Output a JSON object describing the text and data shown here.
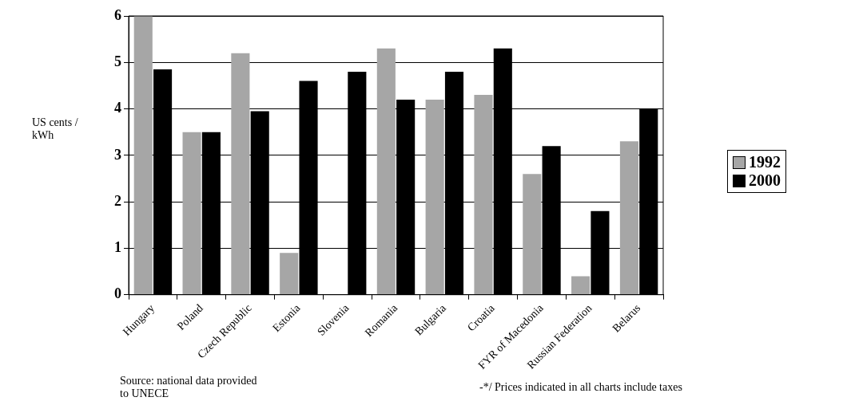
{
  "chart_data": {
    "type": "bar",
    "ylabel": "US cents / kWh",
    "categories": [
      "Hungary",
      "Poland",
      "Czech Republic",
      "Estonia",
      "Slovenia",
      "Romania",
      "Bulgaria",
      "Croatia",
      "FYR of Macedonia",
      "Russian Federation",
      "Belarus"
    ],
    "series": [
      {
        "name": "1992",
        "color": "#a6a6a6",
        "values": [
          6.0,
          3.5,
          5.2,
          0.9,
          null,
          5.3,
          4.2,
          4.3,
          2.6,
          0.4,
          3.3
        ]
      },
      {
        "name": "2000",
        "color": "#000000",
        "values": [
          4.85,
          3.5,
          3.95,
          4.6,
          4.8,
          4.2,
          4.8,
          5.3,
          3.2,
          1.8,
          4.0
        ]
      }
    ],
    "ylim": [
      0,
      6
    ],
    "yticks": [
      0,
      1,
      2,
      3,
      4,
      5,
      6
    ],
    "grid": "y",
    "legend": "right",
    "annotations": [
      "Source:  national data provided to UNECE",
      "-*/  Prices indicated in all charts include taxes"
    ]
  }
}
